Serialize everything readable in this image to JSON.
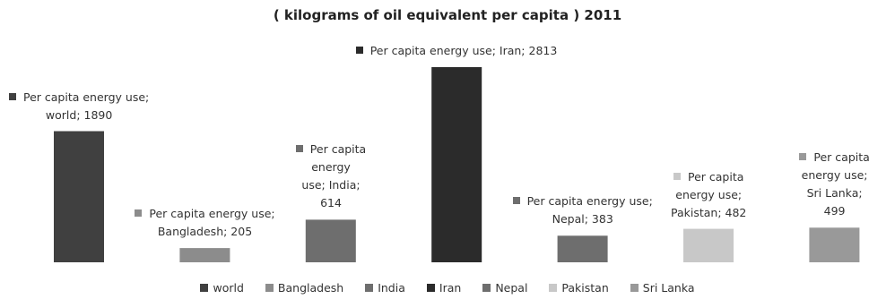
{
  "chart_data": {
    "type": "bar",
    "title": "( kilograms of oil equivalent per capita ) 2011",
    "categories": [
      "world",
      "Bangladesh",
      "India",
      "Iran",
      "Nepal",
      "Pakistan",
      "Sri Lanka"
    ],
    "series": [
      {
        "name": "Per capita energy use",
        "values": [
          1890,
          205,
          614,
          2813,
          383,
          482,
          499
        ]
      }
    ],
    "data_labels": [
      [
        "Per capita energy use;",
        "world; 1890"
      ],
      [
        "Per capita energy use;",
        "Bangladesh; 205"
      ],
      [
        "Per capita",
        "energy",
        "use; India;",
        "614"
      ],
      [
        "Per capita energy use; Iran; 2813"
      ],
      [
        "Per capita energy use;",
        "Nepal; 383"
      ],
      [
        "Per capita",
        "energy use;",
        "Pakistan; 482"
      ],
      [
        "Per capita",
        "energy use;",
        "Sri Lanka;",
        "499"
      ]
    ],
    "colors": [
      "#404040",
      "#8c8c8c",
      "#6e6e6e",
      "#2b2b2b",
      "#6e6e6e",
      "#c8c8c8",
      "#999999"
    ],
    "legend_position": "bottom",
    "grid": false,
    "ylim": [
      0,
      2813
    ]
  }
}
